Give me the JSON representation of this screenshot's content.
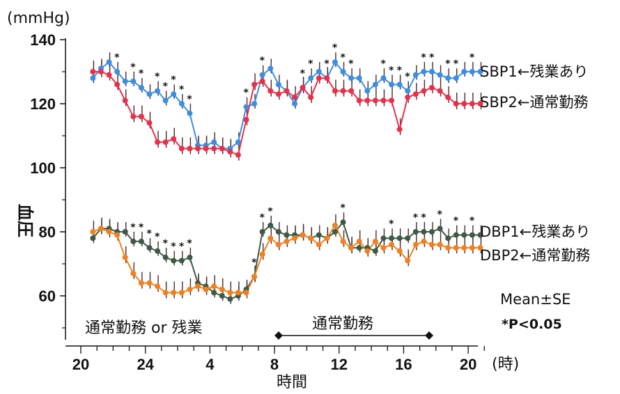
{
  "chart_data": {
    "type": "line",
    "unit_label": "(mmHg)",
    "ylabel": "血圧",
    "xlabel": "時間",
    "x_unit": "(時)",
    "yticks": [
      60,
      80,
      100,
      120,
      140
    ],
    "xticks": [
      "20",
      "24",
      "4",
      "8",
      "12",
      "16",
      "20"
    ],
    "ylim": [
      50,
      143
    ],
    "x_range_hours": [
      20,
      45
    ],
    "x": [
      20.75,
      21.25,
      21.75,
      22.25,
      22.75,
      23.25,
      23.75,
      24.25,
      24.75,
      25.25,
      25.75,
      26.25,
      26.75,
      27.25,
      27.75,
      28.25,
      28.75,
      29.25,
      29.75,
      30.25,
      30.75,
      31.25,
      31.75,
      32.25,
      32.75,
      33.25,
      33.75,
      34.25,
      34.75,
      35.25,
      35.75,
      36.25,
      36.75,
      37.25,
      37.75,
      38.25,
      38.75,
      39.25,
      39.75,
      40.25,
      40.75,
      41.25,
      41.75,
      42.25,
      42.75,
      43.25,
      43.75,
      44.25,
      44.75
    ],
    "series": [
      {
        "name": "SBP1←残業あり",
        "color": "#3b8fe0",
        "values": [
          128,
          131,
          133,
          130,
          127,
          127,
          125,
          123,
          124,
          121,
          123,
          120,
          117,
          107,
          107,
          108,
          106,
          106,
          108,
          119,
          120,
          129,
          131,
          126,
          124,
          120,
          125,
          128,
          130,
          128,
          133,
          130,
          128,
          128,
          124,
          126,
          128,
          126,
          126,
          124,
          129,
          130,
          130,
          129,
          128,
          128,
          130,
          130,
          130
        ],
        "sig": [
          false,
          false,
          false,
          true,
          false,
          true,
          true,
          false,
          true,
          true,
          true,
          true,
          true,
          false,
          false,
          false,
          false,
          false,
          false,
          true,
          false,
          true,
          false,
          false,
          false,
          false,
          true,
          true,
          false,
          true,
          true,
          true,
          true,
          false,
          false,
          false,
          true,
          true,
          true,
          true,
          false,
          true,
          true,
          false,
          true,
          true,
          false,
          true,
          false
        ]
      },
      {
        "name": "SBP2←通常勤務",
        "color": "#e8304a",
        "values": [
          130,
          130,
          129,
          126,
          121,
          116,
          116,
          114,
          108,
          108,
          109,
          106,
          106,
          106,
          106,
          106,
          106,
          105,
          104,
          115,
          126,
          127,
          124,
          123,
          124,
          122,
          125,
          122,
          128,
          128,
          124,
          124,
          124,
          121,
          121,
          121,
          121,
          121,
          112,
          122,
          123,
          124,
          125,
          124,
          122,
          120,
          120,
          120,
          120
        ],
        "sig": []
      },
      {
        "name": "DBP1←残業あり",
        "color": "#3c5a45",
        "values": [
          78,
          81,
          81,
          80,
          80,
          77,
          77,
          75,
          74,
          72,
          71,
          71,
          72,
          64,
          63,
          61,
          60,
          59,
          60,
          62,
          66,
          80,
          82,
          80,
          79,
          79,
          79,
          78,
          79,
          78,
          80,
          83,
          75,
          75,
          75,
          74,
          78,
          78,
          78,
          78,
          80,
          80,
          80,
          81,
          78,
          79,
          79,
          79,
          79
        ],
        "sig": [
          false,
          false,
          false,
          false,
          false,
          true,
          true,
          true,
          true,
          true,
          true,
          true,
          true,
          false,
          false,
          false,
          false,
          false,
          false,
          false,
          true,
          true,
          true,
          false,
          false,
          false,
          false,
          false,
          false,
          false,
          false,
          true,
          false,
          false,
          false,
          false,
          false,
          true,
          false,
          false,
          true,
          true,
          false,
          true,
          false,
          true,
          false,
          true,
          false
        ]
      },
      {
        "name": "DBP2←通常勤務",
        "color": "#f08020",
        "values": [
          80,
          81,
          80,
          79,
          72,
          67,
          64,
          64,
          63,
          61,
          61,
          61,
          62,
          63,
          62,
          63,
          62,
          61,
          61,
          61,
          66,
          73,
          78,
          76,
          77,
          78,
          79,
          78,
          76,
          78,
          82,
          77,
          75,
          77,
          74,
          77,
          75,
          76,
          74,
          71,
          76,
          77,
          76,
          76,
          75,
          75,
          75,
          75,
          75
        ]
      }
    ],
    "error_bars": true,
    "annotations": {
      "legend_mean": "Mean±SE",
      "significance": "*P<0.05",
      "period_left": "通常勤務 or 残業",
      "period_right": "通常勤務",
      "sig_marker": "*"
    }
  }
}
